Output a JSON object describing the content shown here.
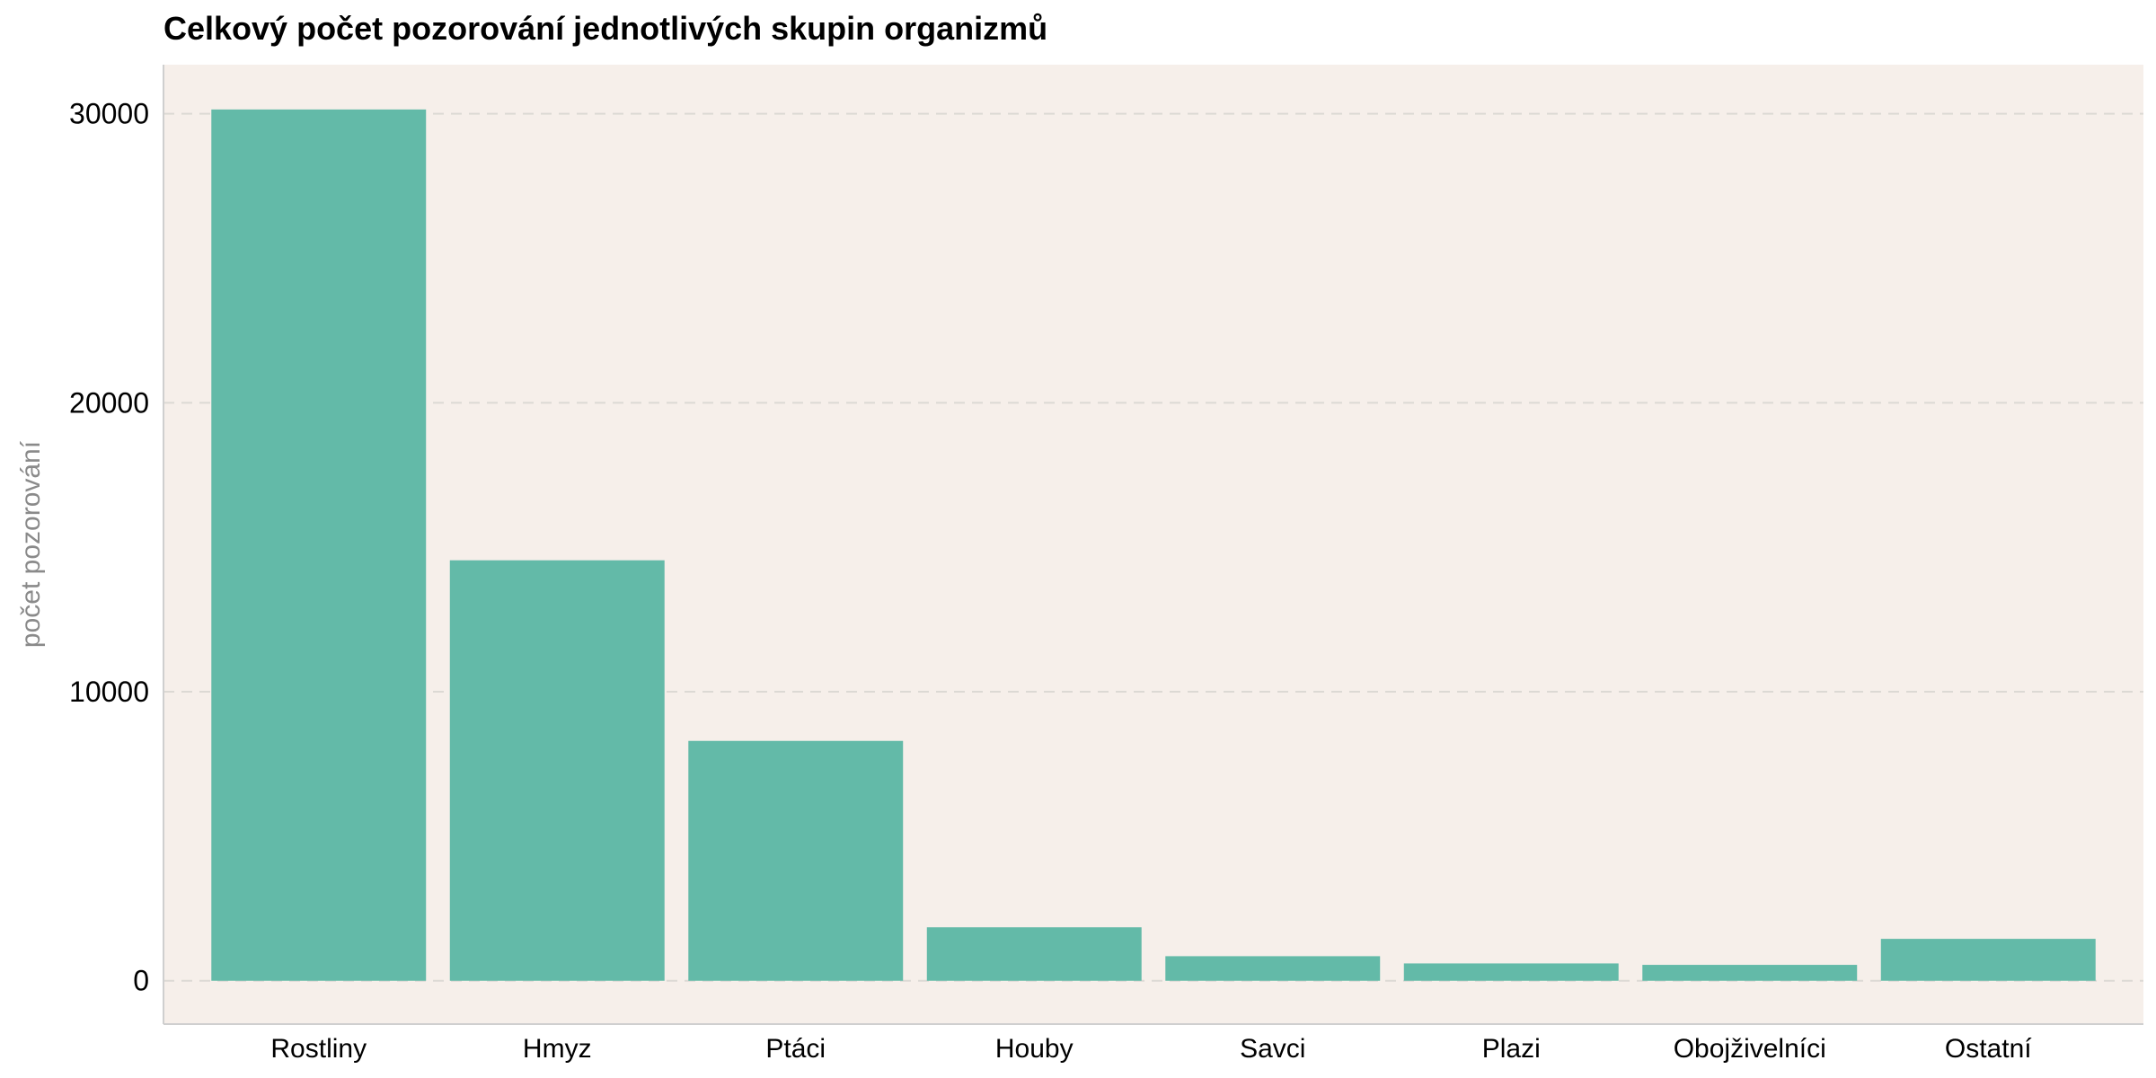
{
  "chart_data": {
    "type": "bar",
    "title": "Celkový počet pozorování jednotlivých skupin organizmů",
    "xlabel": "",
    "ylabel": "počet pozorování",
    "categories": [
      "Rostliny",
      "Hmyz",
      "Ptáci",
      "Houby",
      "Savci",
      "Plazi",
      "Obojživelníci",
      "Ostatní"
    ],
    "values": [
      30150,
      14550,
      8300,
      1850,
      850,
      600,
      550,
      1450
    ],
    "ylim": [
      -1500,
      31700
    ],
    "yticks": [
      0,
      10000,
      20000,
      30000
    ],
    "grid": "horizontal dashed",
    "legend": "none",
    "colors": {
      "bar": "#63baa8",
      "plot_background": "#f6efea",
      "grid": "#dcd9d4"
    }
  }
}
